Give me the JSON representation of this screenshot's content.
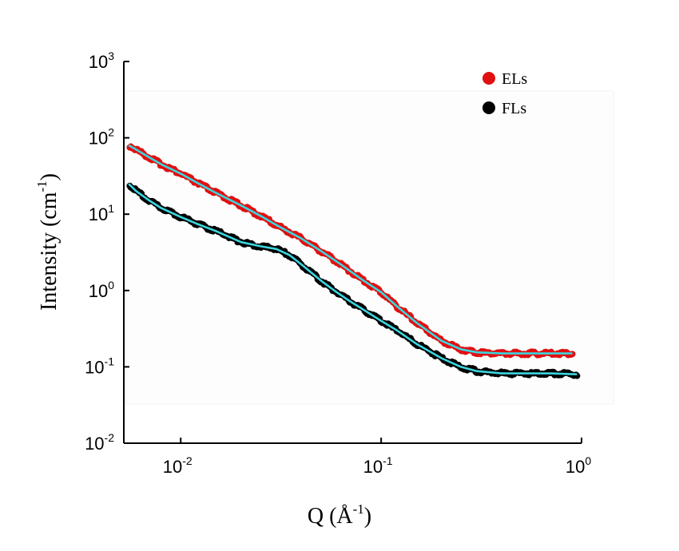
{
  "chart_data": {
    "type": "scatter",
    "title": "",
    "xlabel": {
      "base": "Q (Å",
      "sup": "-1",
      "tail": ")"
    },
    "ylabel": {
      "base": "Intensity (cm",
      "sup": "-1",
      "tail": ")"
    },
    "xscale": "log",
    "yscale": "log",
    "xlim": [
      0.0052,
      1.0
    ],
    "ylim": [
      0.01,
      1000
    ],
    "grid": false,
    "legend_position": "top-right",
    "x_ticks": [
      {
        "value": 0.01,
        "base": "10",
        "exp": "-2"
      },
      {
        "value": 0.1,
        "base": "10",
        "exp": "-1"
      },
      {
        "value": 1,
        "base": "10",
        "exp": "0"
      }
    ],
    "y_ticks": [
      {
        "value": 0.01,
        "base": "10",
        "exp": "-2"
      },
      {
        "value": 0.1,
        "base": "10",
        "exp": "-1"
      },
      {
        "value": 1,
        "base": "10",
        "exp": "0"
      },
      {
        "value": 10,
        "base": "10",
        "exp": "1"
      },
      {
        "value": 100,
        "base": "10",
        "exp": "2"
      },
      {
        "value": 1000,
        "base": "10",
        "exp": "3"
      }
    ],
    "series": [
      {
        "name": "ELs",
        "color": "#e01010",
        "points": [
          [
            0.0055,
            80
          ],
          [
            0.006,
            70
          ],
          [
            0.007,
            55
          ],
          [
            0.008,
            45
          ],
          [
            0.01,
            34
          ],
          [
            0.012,
            26
          ],
          [
            0.015,
            19
          ],
          [
            0.02,
            13
          ],
          [
            0.025,
            9.5
          ],
          [
            0.03,
            7.2
          ],
          [
            0.04,
            4.8
          ],
          [
            0.05,
            3.3
          ],
          [
            0.06,
            2.4
          ],
          [
            0.07,
            1.8
          ],
          [
            0.08,
            1.4
          ],
          [
            0.1,
            0.95
          ],
          [
            0.12,
            0.62
          ],
          [
            0.15,
            0.38
          ],
          [
            0.2,
            0.22
          ],
          [
            0.25,
            0.17
          ],
          [
            0.3,
            0.155
          ],
          [
            0.4,
            0.15
          ],
          [
            0.5,
            0.15
          ],
          [
            0.6,
            0.15
          ],
          [
            0.8,
            0.15
          ],
          [
            0.9,
            0.15
          ]
        ]
      },
      {
        "name": "FLs",
        "color": "#000000",
        "points": [
          [
            0.0055,
            25
          ],
          [
            0.006,
            20
          ],
          [
            0.007,
            15
          ],
          [
            0.008,
            12
          ],
          [
            0.01,
            9.2
          ],
          [
            0.012,
            7.5
          ],
          [
            0.015,
            6
          ],
          [
            0.02,
            4.3
          ],
          [
            0.025,
            3.8
          ],
          [
            0.03,
            3.5
          ],
          [
            0.035,
            2.9
          ],
          [
            0.04,
            2.2
          ],
          [
            0.05,
            1.35
          ],
          [
            0.06,
            0.95
          ],
          [
            0.07,
            0.72
          ],
          [
            0.08,
            0.58
          ],
          [
            0.1,
            0.4
          ],
          [
            0.12,
            0.3
          ],
          [
            0.15,
            0.2
          ],
          [
            0.2,
            0.13
          ],
          [
            0.25,
            0.1
          ],
          [
            0.3,
            0.088
          ],
          [
            0.4,
            0.082
          ],
          [
            0.5,
            0.082
          ],
          [
            0.7,
            0.082
          ],
          [
            0.95,
            0.08
          ]
        ]
      }
    ],
    "fit_color": "#3ad6df"
  }
}
